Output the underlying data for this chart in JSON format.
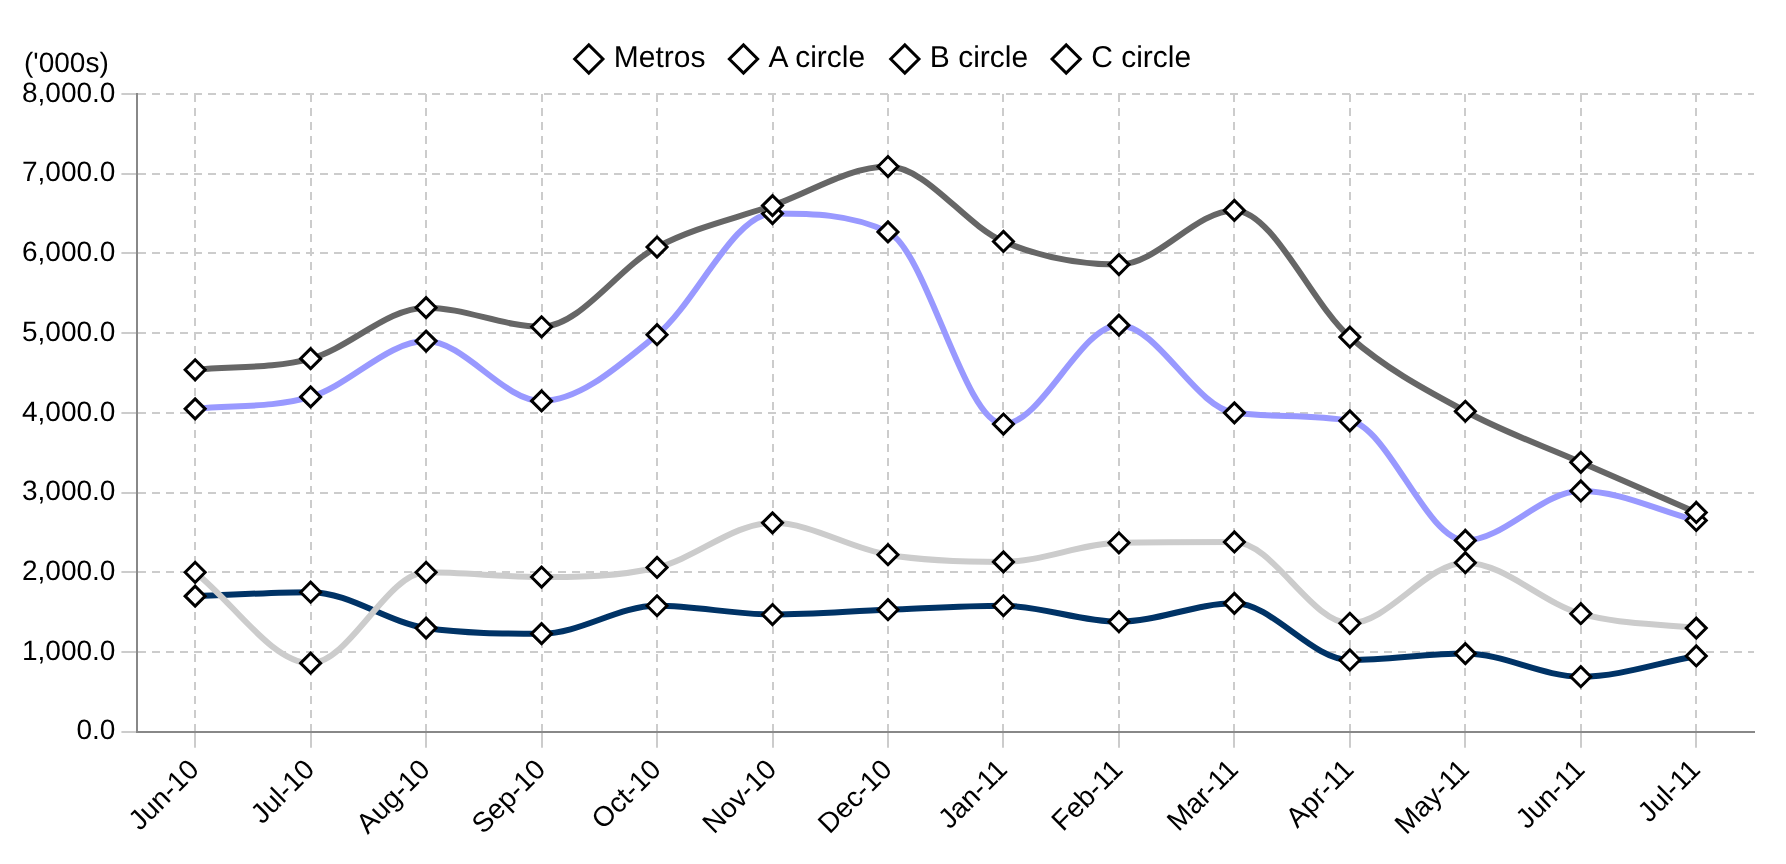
{
  "chart_data": {
    "type": "line",
    "ylabel": "('000s)",
    "categories": [
      "Jun-10",
      "Jul-10",
      "Aug-10",
      "Sep-10",
      "Oct-10",
      "Nov-10",
      "Dec-10",
      "Jan-11",
      "Feb-11",
      "Mar-11",
      "Apr-11",
      "May-11",
      "Jun-11",
      "Jul-11"
    ],
    "series": [
      {
        "name": "Metros",
        "color": "#003366",
        "values": [
          1700,
          1750,
          1300,
          1230,
          1580,
          1470,
          1530,
          1580,
          1380,
          1610,
          900,
          980,
          690,
          950
        ]
      },
      {
        "name": "A circle",
        "color": "#9999ff",
        "values": [
          4050,
          4200,
          4900,
          4150,
          4980,
          6500,
          6270,
          3860,
          5100,
          4000,
          3900,
          2400,
          3020,
          2650
        ]
      },
      {
        "name": "B circle",
        "color": "#666666",
        "values": [
          4540,
          4680,
          5320,
          5080,
          6080,
          6600,
          7090,
          6150,
          5860,
          6540,
          4950,
          4020,
          3380,
          2750
        ]
      },
      {
        "name": "C circle",
        "color": "#cccccc",
        "values": [
          2000,
          860,
          2000,
          1940,
          2060,
          2620,
          2220,
          2130,
          2370,
          2380,
          1360,
          2120,
          1480,
          1300
        ]
      }
    ],
    "ylim": [
      0,
      8000
    ],
    "yticks": [
      {
        "value": 0,
        "label": "0.0"
      },
      {
        "value": 1000,
        "label": "1,000.0"
      },
      {
        "value": 2000,
        "label": "2,000.0"
      },
      {
        "value": 3000,
        "label": "3,000.0"
      },
      {
        "value": 4000,
        "label": "4,000.0"
      },
      {
        "value": 5000,
        "label": "5,000.0"
      },
      {
        "value": 6000,
        "label": "6,000.0"
      },
      {
        "value": 7000,
        "label": "7,000.0"
      },
      {
        "value": 8000,
        "label": "8,000.0"
      }
    ],
    "grid": true,
    "legend": "top",
    "marker": "diamond",
    "line_style": "solid"
  }
}
